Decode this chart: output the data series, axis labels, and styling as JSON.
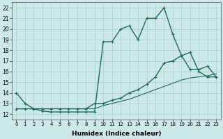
{
  "xlabel": "Humidex (Indice chaleur)",
  "xlim": [
    -0.5,
    23.5
  ],
  "ylim": [
    11.5,
    22.5
  ],
  "xticks": [
    0,
    1,
    2,
    3,
    4,
    5,
    6,
    7,
    8,
    9,
    10,
    11,
    12,
    13,
    14,
    15,
    16,
    17,
    18,
    19,
    20,
    21,
    22,
    23
  ],
  "yticks": [
    12,
    13,
    14,
    15,
    16,
    17,
    18,
    19,
    20,
    21,
    22
  ],
  "background_color": "#cde8e8",
  "grid_color": "#aacece",
  "line_color": "#1a6b5a",
  "series": [
    {
      "x": [
        0,
        1,
        2,
        3,
        4,
        5,
        6,
        7,
        8,
        9,
        10,
        11,
        12,
        13,
        14,
        15,
        16,
        17,
        18,
        19,
        20,
        21,
        22,
        23
      ],
      "y": [
        14,
        13,
        12.5,
        12.3,
        12.2,
        12.2,
        12.2,
        12.2,
        12.2,
        12.2,
        18.8,
        18.8,
        20.0,
        20.3,
        19.0,
        21.0,
        21.0,
        22.0,
        19.5,
        17.5,
        17.8,
        16.0,
        15.5,
        15.5
      ],
      "marker": "+",
      "markersize": 3.5,
      "linewidth": 1.0,
      "linestyle": "-"
    },
    {
      "x": [
        0,
        1,
        2,
        3,
        4,
        5,
        6,
        7,
        8,
        9,
        10,
        11,
        12,
        13,
        14,
        15,
        16,
        17,
        18,
        19,
        20,
        21,
        22,
        23
      ],
      "y": [
        12.5,
        12.5,
        12.5,
        12.5,
        12.5,
        12.5,
        12.5,
        12.5,
        12.5,
        13.0,
        13.0,
        13.3,
        13.5,
        14.0,
        14.3,
        14.8,
        15.5,
        16.8,
        17.0,
        17.5,
        16.2,
        16.2,
        16.5,
        15.5
      ],
      "marker": "+",
      "markersize": 3.0,
      "linewidth": 1.0,
      "linestyle": "-"
    },
    {
      "x": [
        0,
        1,
        2,
        3,
        4,
        5,
        6,
        7,
        8,
        9,
        10,
        11,
        12,
        13,
        14,
        15,
        16,
        17,
        18,
        19,
        20,
        21,
        22,
        23
      ],
      "y": [
        12.5,
        12.5,
        12.5,
        12.5,
        12.5,
        12.5,
        12.5,
        12.5,
        12.5,
        12.5,
        12.8,
        13.0,
        13.2,
        13.4,
        13.7,
        14.0,
        14.3,
        14.6,
        14.9,
        15.2,
        15.4,
        15.5,
        15.6,
        15.8
      ],
      "marker": null,
      "markersize": 0,
      "linewidth": 0.8,
      "linestyle": "-"
    }
  ]
}
